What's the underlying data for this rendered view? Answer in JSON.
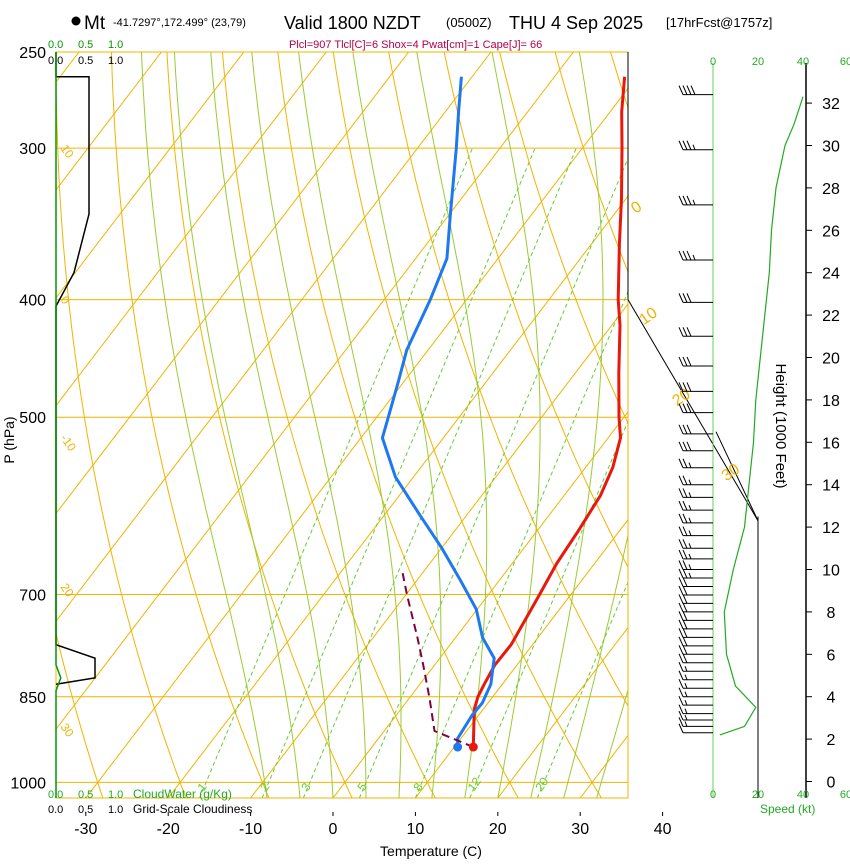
{
  "header": {
    "site": "Mt",
    "coords": "-41.7297°,172.499° (23,79)",
    "valid": "Valid 1800 NZDT",
    "utc": "(0500Z)",
    "date": "THU 4 Sep 2025",
    "forecast": "[17hrFcst@1757z]",
    "indices": "Plcl=907 Tlcl[C]=6 Shox=4 Pwat[cm]=1 Cape[J]= 66"
  },
  "colors": {
    "isotherm": "#f0b400",
    "dry_adiabat": "#f0b400",
    "moist_adiabat": "#99cc33",
    "mixing_ratio": "#66cc33",
    "temperature": "#e8180c",
    "dewpoint": "#1e78f0",
    "parcel": "#800040",
    "cloud": "#009900",
    "indices": "#b0004c",
    "black": "#000000"
  },
  "chart_data": {
    "type": "line",
    "subtype": "skew-T log-P sounding",
    "xlabel": "Temperature (C)",
    "ylabel": "P (hPa)",
    "y2label": "Height (1000 Feet)",
    "x_ticks": [
      -30,
      -20,
      -10,
      0,
      10,
      20,
      30,
      40
    ],
    "xlim": [
      -34,
      35
    ],
    "pressure_ticks": [
      250,
      300,
      400,
      500,
      700,
      850,
      1000
    ],
    "pressure_range": [
      250,
      1030
    ],
    "height_ticks": [
      0,
      2,
      4,
      6,
      8,
      10,
      12,
      14,
      16,
      18,
      20,
      22,
      24,
      26,
      28,
      30,
      32
    ],
    "isotherms": [
      -160,
      -150,
      -140,
      -130,
      -120,
      -110,
      -100,
      -90,
      -80,
      -70,
      -60,
      -50,
      -40,
      -30,
      -20,
      -10,
      0,
      10,
      20,
      30,
      40
    ],
    "isotherm_labels": [
      {
        "label": "10",
        "t": -10,
        "p": 300
      },
      {
        "label": "0",
        "t": 0,
        "p": 400
      },
      {
        "label": "-10",
        "t": -10,
        "p": 520
      },
      {
        "label": "20",
        "t": 20,
        "p": 690
      },
      {
        "label": "30",
        "t": 30,
        "p": 900
      }
    ],
    "dry_adiabats_theta_C": [
      -30,
      -20,
      -10,
      0,
      10,
      20,
      30,
      40,
      50,
      60,
      70,
      80,
      90,
      100,
      110,
      120,
      130
    ],
    "dry_adiabat_labels": [
      {
        "label": "0",
        "t": 36,
        "p": 340
      },
      {
        "label": "10",
        "t": 37,
        "p": 420
      },
      {
        "label": "20",
        "t": 41,
        "p": 490
      },
      {
        "label": "30",
        "t": 47,
        "p": 565
      }
    ],
    "moist_adiabats_start_C": [
      -8,
      -4,
      0,
      4,
      8,
      12,
      16,
      20,
      24,
      28,
      32,
      36
    ],
    "mixing_ratio_lines": [
      {
        "label": "1",
        "x_at_1030": -16.2
      },
      {
        "label": "2",
        "x_at_1030": -8.6
      },
      {
        "label": "3",
        "x_at_1030": -3.6
      },
      {
        "label": "5",
        "x_at_1030": 3.2
      },
      {
        "label": "8",
        "x_at_1030": 10.0
      },
      {
        "label": "12",
        "x_at_1030": 16.6
      },
      {
        "label": "20",
        "x_at_1030": 24.8
      }
    ],
    "series": [
      {
        "name": "Temperature",
        "points": [
          {
            "p": 935,
            "t": 12.3
          },
          {
            "p": 900,
            "t": 10.5
          },
          {
            "p": 870,
            "t": 8.9
          },
          {
            "p": 850,
            "t": 8.2
          },
          {
            "p": 830,
            "t": 7.8
          },
          {
            "p": 800,
            "t": 7.3
          },
          {
            "p": 770,
            "t": 7.4
          },
          {
            "p": 740,
            "t": 6.9
          },
          {
            "p": 700,
            "t": 6.2
          },
          {
            "p": 660,
            "t": 5.4
          },
          {
            "p": 620,
            "t": 5.0
          },
          {
            "p": 580,
            "t": 4.4
          },
          {
            "p": 550,
            "t": 3.3
          },
          {
            "p": 520,
            "t": 1.5
          },
          {
            "p": 500,
            "t": -0.6
          },
          {
            "p": 460,
            "t": -4.7
          },
          {
            "p": 420,
            "t": -9.0
          },
          {
            "p": 400,
            "t": -11.6
          },
          {
            "p": 360,
            "t": -16.6
          },
          {
            "p": 330,
            "t": -20.6
          },
          {
            "p": 300,
            "t": -25.2
          },
          {
            "p": 280,
            "t": -28.6
          },
          {
            "p": 262,
            "t": -31.5
          }
        ]
      },
      {
        "name": "Dewpoint",
        "points": [
          {
            "p": 935,
            "t": 10.4
          },
          {
            "p": 920,
            "t": 9.6
          },
          {
            "p": 880,
            "t": 9.2
          },
          {
            "p": 860,
            "t": 9.3
          },
          {
            "p": 830,
            "t": 8.6
          },
          {
            "p": 790,
            "t": 6.6
          },
          {
            "p": 760,
            "t": 3.3
          },
          {
            "p": 720,
            "t": -0.1
          },
          {
            "p": 680,
            "t": -4.9
          },
          {
            "p": 640,
            "t": -10.1
          },
          {
            "p": 600,
            "t": -16.0
          },
          {
            "p": 560,
            "t": -22.2
          },
          {
            "p": 520,
            "t": -27.4
          },
          {
            "p": 500,
            "t": -28.6
          },
          {
            "p": 470,
            "t": -30.5
          },
          {
            "p": 440,
            "t": -32.6
          },
          {
            "p": 400,
            "t": -34.4
          },
          {
            "p": 370,
            "t": -36.2
          },
          {
            "p": 340,
            "t": -39.9
          },
          {
            "p": 300,
            "t": -45.3
          },
          {
            "p": 280,
            "t": -48.4
          },
          {
            "p": 262,
            "t": -51.3
          }
        ]
      },
      {
        "name": "Parcel",
        "points": [
          {
            "p": 935,
            "t": 12.3
          },
          {
            "p": 907,
            "t": 6.1
          },
          {
            "p": 850,
            "t": 2.3
          },
          {
            "p": 800,
            "t": -1.4
          },
          {
            "p": 760,
            "t": -4.6
          },
          {
            "p": 700,
            "t": -9.9
          },
          {
            "p": 670,
            "t": -12.6
          }
        ]
      }
    ],
    "surface_temperature_marker": {
      "p": 935,
      "t": 12.3
    },
    "surface_dewpoint_marker": {
      "p": 935,
      "t": 10.4
    },
    "cloudwater_axis": {
      "label": "CloudWater (g/Kg)",
      "ticks": [
        "0.0",
        "0.5",
        "1.0"
      ]
    },
    "cloudiness_axis": {
      "label": "Grid-Scale Cloudiness",
      "ticks": [
        "0.0",
        "0.5",
        "1.0"
      ]
    },
    "cloudiness_profile": [
      {
        "p": 250,
        "v": 0
      },
      {
        "p": 262,
        "v": 0.0
      },
      {
        "p": 262,
        "v": 0.55
      },
      {
        "p": 340,
        "v": 0.55
      },
      {
        "p": 380,
        "v": 0.3
      },
      {
        "p": 405,
        "v": 0
      },
      {
        "p": 770,
        "v": 0
      },
      {
        "p": 790,
        "v": 0.65
      },
      {
        "p": 820,
        "v": 0.65
      },
      {
        "p": 830,
        "v": 0
      }
    ],
    "cloudwater_profile": [
      {
        "p": 250,
        "v": 0
      },
      {
        "p": 800,
        "v": 0
      },
      {
        "p": 820,
        "v": 0.08
      },
      {
        "p": 840,
        "v": 0
      },
      {
        "p": 1030,
        "v": 0
      }
    ],
    "wind_speed_axis": {
      "label": "Speed (kt)",
      "ticks": [
        "0",
        "20",
        "40",
        "60"
      ]
    },
    "wind_speed_profile": [
      {
        "z": 2.2,
        "v": 3
      },
      {
        "z": 2.6,
        "v": 14
      },
      {
        "z": 3.5,
        "v": 19
      },
      {
        "z": 4.5,
        "v": 10
      },
      {
        "z": 6,
        "v": 6
      },
      {
        "z": 8,
        "v": 5
      },
      {
        "z": 10,
        "v": 9
      },
      {
        "z": 12,
        "v": 14
      },
      {
        "z": 14,
        "v": 16
      },
      {
        "z": 16,
        "v": 18
      },
      {
        "z": 18,
        "v": 19
      },
      {
        "z": 20,
        "v": 21
      },
      {
        "z": 22,
        "v": 23
      },
      {
        "z": 24,
        "v": 25
      },
      {
        "z": 26,
        "v": 26
      },
      {
        "z": 28,
        "v": 28
      },
      {
        "z": 30,
        "v": 32
      },
      {
        "z": 31,
        "v": 36
      },
      {
        "z": 32.3,
        "v": 40
      }
    ],
    "wind_barbs_kt": [
      {
        "z": 2.3,
        "spd": 12
      },
      {
        "z": 2.6,
        "spd": 13
      },
      {
        "z": 2.9,
        "spd": 14
      },
      {
        "z": 3.2,
        "spd": 15
      },
      {
        "z": 3.6,
        "spd": 16
      },
      {
        "z": 4.0,
        "spd": 17
      },
      {
        "z": 4.4,
        "spd": 17
      },
      {
        "z": 4.8,
        "spd": 17
      },
      {
        "z": 5.2,
        "spd": 17
      },
      {
        "z": 5.6,
        "spd": 18
      },
      {
        "z": 6.0,
        "spd": 18
      },
      {
        "z": 6.4,
        "spd": 19
      },
      {
        "z": 6.8,
        "spd": 19
      },
      {
        "z": 7.2,
        "spd": 20
      },
      {
        "z": 7.6,
        "spd": 20
      },
      {
        "z": 8.0,
        "spd": 21
      },
      {
        "z": 8.4,
        "spd": 21
      },
      {
        "z": 8.8,
        "spd": 22
      },
      {
        "z": 9.2,
        "spd": 22
      },
      {
        "z": 9.6,
        "spd": 23
      },
      {
        "z": 10.0,
        "spd": 23
      },
      {
        "z": 10.5,
        "spd": 24
      },
      {
        "z": 11.0,
        "spd": 24
      },
      {
        "z": 11.6,
        "spd": 25
      },
      {
        "z": 12.2,
        "spd": 25
      },
      {
        "z": 12.8,
        "spd": 26
      },
      {
        "z": 13.4,
        "spd": 26
      },
      {
        "z": 14.0,
        "spd": 27
      },
      {
        "z": 14.8,
        "spd": 27
      },
      {
        "z": 15.6,
        "spd": 28
      },
      {
        "z": 16.4,
        "spd": 28
      },
      {
        "z": 17.4,
        "spd": 29
      },
      {
        "z": 18.4,
        "spd": 30
      },
      {
        "z": 19.6,
        "spd": 30
      },
      {
        "z": 21.0,
        "spd": 31
      },
      {
        "z": 22.6,
        "spd": 32
      },
      {
        "z": 24.6,
        "spd": 33
      },
      {
        "z": 27.2,
        "spd": 34
      },
      {
        "z": 29.8,
        "spd": 36
      },
      {
        "z": 32.4,
        "spd": 40
      }
    ]
  }
}
